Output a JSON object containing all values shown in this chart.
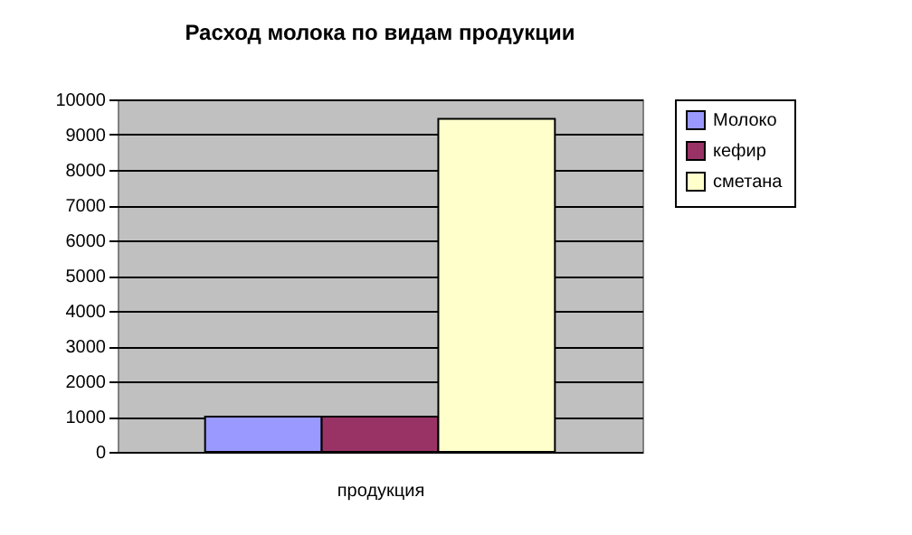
{
  "chart_data": {
    "type": "bar",
    "title": "Расход молока по видам продукции",
    "xlabel": "продукция",
    "categories": [
      null
    ],
    "series": [
      {
        "name": "Молоко",
        "color": "#9999ff",
        "values": [
          1000
        ]
      },
      {
        "name": "кефир",
        "color": "#993366",
        "values": [
          1000
        ]
      },
      {
        "name": "сметана",
        "color": "#ffffcc",
        "values": [
          9450
        ]
      }
    ],
    "ylim": [
      0,
      10000
    ],
    "yticks": [
      0,
      1000,
      2000,
      3000,
      4000,
      5000,
      6000,
      7000,
      8000,
      9000,
      10000
    ],
    "grid": "y",
    "legend": "right"
  }
}
